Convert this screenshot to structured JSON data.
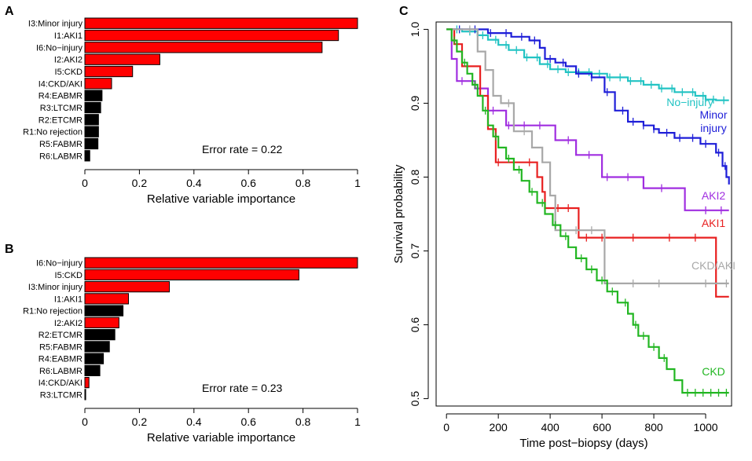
{
  "chart_data": [
    {
      "panel": "A",
      "type": "bar",
      "orientation": "horizontal",
      "xlabel": "Relative variable importance",
      "xlim": [
        0,
        1
      ],
      "xticks": [
        "0",
        "0.2",
        "0.4",
        "0.6",
        "0.8",
        "1"
      ],
      "annotation": "Error rate =  0.22",
      "categories": [
        "I3:Minor injury",
        "I1:AKI1",
        "I6:No−injury",
        "I2:AKI2",
        "I5:CKD",
        "I4:CKD/AKI",
        "R4:EABMR",
        "R3:LTCMR",
        "R2:ETCMR",
        "R1:No rejection",
        "R5:FABMR",
        "R6:LABMR"
      ],
      "values": [
        1.0,
        0.93,
        0.87,
        0.275,
        0.175,
        0.098,
        0.063,
        0.058,
        0.05,
        0.05,
        0.048,
        0.018
      ],
      "colors": [
        "#ff0000",
        "#ff0000",
        "#ff0000",
        "#ff0000",
        "#ff0000",
        "#ff0000",
        "#000000",
        "#000000",
        "#000000",
        "#000000",
        "#000000",
        "#000000"
      ]
    },
    {
      "panel": "B",
      "type": "bar",
      "orientation": "horizontal",
      "xlabel": "Relative variable importance",
      "xlim": [
        0,
        1
      ],
      "xticks": [
        "0",
        "0.2",
        "0.4",
        "0.6",
        "0.8",
        "1"
      ],
      "annotation": "Error rate =  0.23",
      "categories": [
        "I6:No−injury",
        "I5:CKD",
        "I3:Minor injury",
        "I1:AKI1",
        "R1:No rejection",
        "I2:AKI2",
        "R2:ETCMR",
        "R5:FABMR",
        "R4:EABMR",
        "R6:LABMR",
        "I4:CKD/AKI",
        "R3:LTCMR"
      ],
      "values": [
        1.0,
        0.785,
        0.31,
        0.16,
        0.14,
        0.125,
        0.11,
        0.09,
        0.068,
        0.055,
        0.015,
        0.003
      ],
      "colors": [
        "#ff0000",
        "#ff0000",
        "#ff0000",
        "#ff0000",
        "#000000",
        "#ff0000",
        "#000000",
        "#000000",
        "#000000",
        "#000000",
        "#ff0000",
        "#000000"
      ]
    },
    {
      "panel": "C",
      "type": "line",
      "subtype": "step",
      "xlabel": "Time post−biopsy (days)",
      "ylabel": "Survival probability",
      "xlim": [
        -40,
        1100
      ],
      "ylim": [
        0.49,
        1.01
      ],
      "xticks": [
        0,
        200,
        400,
        600,
        800,
        1000
      ],
      "yticks": [
        0.5,
        0.6,
        0.7,
        0.8,
        0.9,
        1.0
      ],
      "xtick_labels": [
        "0",
        "200",
        "400",
        "600",
        "800",
        "1000"
      ],
      "ytick_labels": [
        "0.5",
        "0.6",
        "0.7",
        "0.8",
        "0.9",
        "1.0"
      ],
      "series": [
        {
          "name": "No−injury",
          "label_lines": [
            "No−injury"
          ],
          "color": "#22c3c3",
          "end": 1090,
          "points": [
            [
              0,
              1.0
            ],
            [
              60,
              0.997
            ],
            [
              120,
              0.992
            ],
            [
              160,
              0.986
            ],
            [
              200,
              0.979
            ],
            [
              240,
              0.972
            ],
            [
              300,
              0.962
            ],
            [
              360,
              0.953
            ],
            [
              400,
              0.946
            ],
            [
              460,
              0.942
            ],
            [
              560,
              0.94
            ],
            [
              620,
              0.935
            ],
            [
              700,
              0.93
            ],
            [
              760,
              0.925
            ],
            [
              820,
              0.92
            ],
            [
              880,
              0.915
            ],
            [
              960,
              0.91
            ],
            [
              1000,
              0.905
            ],
            [
              1040,
              0.904
            ]
          ],
          "censor": [
            40,
            90,
            140,
            190,
            230,
            270,
            310,
            350,
            390,
            430,
            470,
            510,
            550,
            590,
            630,
            670,
            710,
            750,
            790,
            830,
            870,
            910,
            950,
            990,
            1030,
            1070
          ]
        },
        {
          "name": "Minor injury",
          "label_lines": [
            "Minor",
            "injury"
          ],
          "color": "#1e1ed8",
          "end": 1090,
          "points": [
            [
              0,
              1.0
            ],
            [
              160,
              0.995
            ],
            [
              250,
              0.99
            ],
            [
              320,
              0.985
            ],
            [
              360,
              0.975
            ],
            [
              380,
              0.96
            ],
            [
              420,
              0.955
            ],
            [
              460,
              0.95
            ],
            [
              500,
              0.94
            ],
            [
              560,
              0.935
            ],
            [
              610,
              0.915
            ],
            [
              650,
              0.89
            ],
            [
              700,
              0.875
            ],
            [
              760,
              0.87
            ],
            [
              800,
              0.865
            ],
            [
              820,
              0.86
            ],
            [
              880,
              0.853
            ],
            [
              980,
              0.845
            ],
            [
              1040,
              0.833
            ],
            [
              1065,
              0.815
            ],
            [
              1080,
              0.8
            ],
            [
              1090,
              0.79
            ]
          ],
          "censor": [
            50,
            110,
            170,
            230,
            290,
            340,
            400,
            450,
            510,
            560,
            620,
            680,
            720,
            760,
            800,
            850,
            900,
            950,
            1000,
            1050,
            1075
          ]
        },
        {
          "name": "AKI2",
          "label_lines": [
            "AKI2"
          ],
          "color": "#a02ee0",
          "end": 1090,
          "points": [
            [
              0,
              1.0
            ],
            [
              20,
              0.96
            ],
            [
              40,
              0.93
            ],
            [
              110,
              0.92
            ],
            [
              160,
              0.89
            ],
            [
              230,
              0.87
            ],
            [
              420,
              0.85
            ],
            [
              500,
              0.83
            ],
            [
              600,
              0.8
            ],
            [
              760,
              0.785
            ],
            [
              920,
              0.755
            ]
          ],
          "censor": [
            60,
            120,
            180,
            240,
            300,
            360,
            470,
            550,
            620,
            700,
            830,
            1000,
            1060
          ]
        },
        {
          "name": "AKI1",
          "label_lines": [
            "AKI1"
          ],
          "color": "#e82020",
          "end": 1090,
          "points": [
            [
              0,
              1.0
            ],
            [
              30,
              0.98
            ],
            [
              60,
              0.95
            ],
            [
              130,
              0.91
            ],
            [
              160,
              0.865
            ],
            [
              190,
              0.82
            ],
            [
              350,
              0.8
            ],
            [
              370,
              0.78
            ],
            [
              380,
              0.758
            ],
            [
              510,
              0.718
            ],
            [
              1040,
              0.638
            ]
          ],
          "censor": [
            80,
            200,
            260,
            320,
            430,
            470,
            540,
            600,
            720,
            860,
            960
          ]
        },
        {
          "name": "CKD/AKI",
          "label_lines": [
            "CKD/AKI"
          ],
          "color": "#a8a8a8",
          "end": 1090,
          "points": [
            [
              0,
              1.0
            ],
            [
              120,
              0.97
            ],
            [
              150,
              0.945
            ],
            [
              180,
              0.91
            ],
            [
              210,
              0.9
            ],
            [
              260,
              0.862
            ],
            [
              330,
              0.84
            ],
            [
              370,
              0.82
            ],
            [
              400,
              0.775
            ],
            [
              420,
              0.728
            ],
            [
              610,
              0.656
            ]
          ],
          "censor": [
            90,
            240,
            300,
            440,
            500,
            560,
            720,
            820,
            1000,
            1080
          ]
        },
        {
          "name": "CKD",
          "label_lines": [
            "CKD"
          ],
          "color": "#22b622",
          "end": 1090,
          "points": [
            [
              0,
              1.0
            ],
            [
              20,
              0.985
            ],
            [
              40,
              0.97
            ],
            [
              60,
              0.955
            ],
            [
              80,
              0.94
            ],
            [
              100,
              0.925
            ],
            [
              120,
              0.91
            ],
            [
              140,
              0.89
            ],
            [
              160,
              0.87
            ],
            [
              180,
              0.855
            ],
            [
              200,
              0.84
            ],
            [
              230,
              0.825
            ],
            [
              260,
              0.81
            ],
            [
              290,
              0.795
            ],
            [
              320,
              0.78
            ],
            [
              350,
              0.765
            ],
            [
              380,
              0.75
            ],
            [
              410,
              0.735
            ],
            [
              440,
              0.72
            ],
            [
              470,
              0.705
            ],
            [
              500,
              0.69
            ],
            [
              540,
              0.675
            ],
            [
              580,
              0.66
            ],
            [
              620,
              0.645
            ],
            [
              660,
              0.63
            ],
            [
              700,
              0.615
            ],
            [
              720,
              0.6
            ],
            [
              740,
              0.585
            ],
            [
              780,
              0.57
            ],
            [
              820,
              0.555
            ],
            [
              850,
              0.54
            ],
            [
              880,
              0.525
            ],
            [
              910,
              0.508
            ]
          ],
          "censor": [
            30,
            70,
            110,
            150,
            190,
            240,
            280,
            330,
            370,
            420,
            460,
            520,
            560,
            600,
            640,
            690,
            730,
            760,
            800,
            840,
            930,
            960,
            990,
            1020,
            1050,
            1080
          ]
        }
      ]
    }
  ]
}
